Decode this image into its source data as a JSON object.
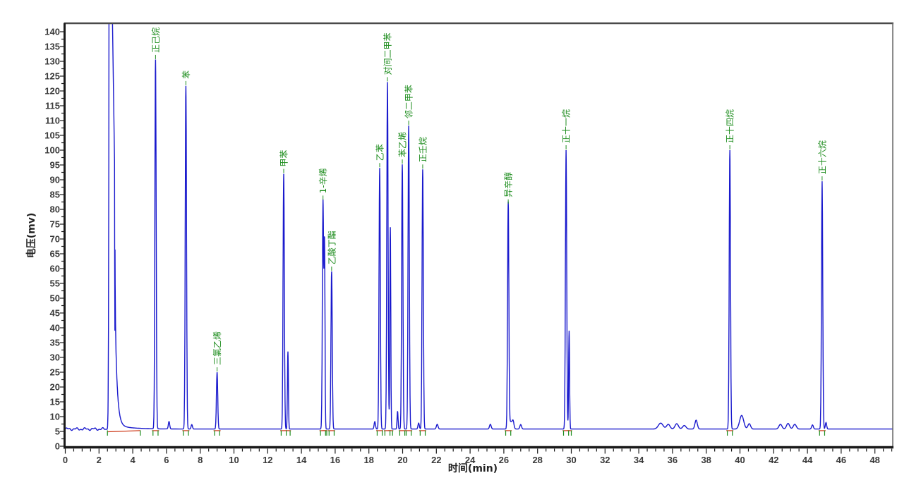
{
  "window": {
    "background": "#ffffff"
  },
  "chart_data": {
    "type": "line",
    "title": "",
    "xlabel": "时间(min)",
    "ylabel": "电压(mv)",
    "x_range": [
      0,
      49.05
    ],
    "y_range": [
      0,
      142.86
    ],
    "x_ticks": [
      0,
      2,
      4,
      6,
      8,
      10,
      12,
      14,
      16,
      18,
      20,
      22,
      24,
      26,
      28,
      30,
      32,
      34,
      36,
      38,
      40,
      42,
      44,
      46,
      48
    ],
    "x_minor_step": 0.5,
    "y_ticks": [
      0,
      5,
      10,
      15,
      20,
      25,
      30,
      35,
      40,
      45,
      50,
      55,
      60,
      65,
      70,
      75,
      80,
      85,
      90,
      95,
      100,
      105,
      110,
      115,
      120,
      125,
      130,
      135,
      140
    ],
    "y_minor_step": 2.5,
    "grid": false,
    "legend": false,
    "baseline_mv": 5.8,
    "colors": {
      "trace": "#1a1acd",
      "peak_labels": "#1c8c1c",
      "peak_marker_ticks": "#1c8c1c",
      "integration_marks": "#cc3311",
      "axis": "#1a1a1a",
      "tick_text": "#3a3a3a",
      "border_top": "#4a4a4a",
      "border_right": "#666666"
    },
    "solvent_peak": {
      "start_min": 2.57,
      "end_min": 2.93,
      "clipped_above_mv": 142.8,
      "tail_end_min": 4.45
    },
    "peaks": [
      {
        "name": "正己烷",
        "time_min": 5.35,
        "apex_mv": 130.5
      },
      {
        "name": "苯",
        "time_min": 7.15,
        "apex_mv": 121.7
      },
      {
        "name": "三氯乙烯",
        "time_min": 9.0,
        "apex_mv": 25.0
      },
      {
        "name": "甲苯",
        "time_min": 12.95,
        "apex_mv": 92.0
      },
      {
        "name": "1-辛烯",
        "time_min": 15.28,
        "apex_mv": 83.0
      },
      {
        "name": "乙酸丁酯",
        "time_min": 15.79,
        "apex_mv": 59.0
      },
      {
        "name": "乙苯",
        "time_min": 18.64,
        "apex_mv": 94.0
      },
      {
        "name": "对间二甲苯",
        "time_min": 19.1,
        "apex_mv": 123.0
      },
      {
        "name": "苯乙烯",
        "time_min": 19.98,
        "apex_mv": 95.2
      },
      {
        "name": "邻二甲苯",
        "time_min": 20.36,
        "apex_mv": 108.3
      },
      {
        "name": "正壬烷",
        "time_min": 21.19,
        "apex_mv": 93.5
      },
      {
        "name": "异辛醇",
        "time_min": 26.26,
        "apex_mv": 81.7
      },
      {
        "name": "正十一烷",
        "time_min": 29.69,
        "apex_mv": 100.0
      },
      {
        "name": "正十四烷",
        "time_min": 39.4,
        "apex_mv": 100.0
      },
      {
        "name": "正十六烷",
        "time_min": 44.87,
        "apex_mv": 89.5
      }
    ],
    "unlabeled_peaks": [
      {
        "time_min": 13.2,
        "apex_mv": 32.0
      },
      {
        "time_min": 15.37,
        "apex_mv": 66.0
      },
      {
        "time_min": 19.27,
        "apex_mv": 74.0
      },
      {
        "time_min": 29.87,
        "apex_mv": 39.0
      }
    ],
    "baseline_noise_bumps": [
      [
        6.15,
        2.5,
        0.04
      ],
      [
        7.5,
        1.5,
        0.04
      ],
      [
        18.35,
        2.5,
        0.04
      ],
      [
        19.7,
        6.0,
        0.03
      ],
      [
        20.95,
        2.0,
        0.04
      ],
      [
        22.05,
        1.6,
        0.05
      ],
      [
        25.2,
        1.6,
        0.05
      ],
      [
        26.4,
        2.5,
        0.1
      ],
      [
        26.55,
        2.2,
        0.05
      ],
      [
        27.0,
        1.5,
        0.05
      ],
      [
        35.3,
        2.0,
        0.14
      ],
      [
        35.75,
        1.6,
        0.1
      ],
      [
        36.25,
        1.8,
        0.1
      ],
      [
        36.7,
        1.2,
        0.1
      ],
      [
        37.4,
        3.0,
        0.07
      ],
      [
        40.1,
        4.6,
        0.12
      ],
      [
        40.55,
        1.8,
        0.08
      ],
      [
        42.4,
        1.6,
        0.09
      ],
      [
        42.85,
        1.9,
        0.09
      ],
      [
        43.25,
        1.6,
        0.09
      ],
      [
        44.3,
        1.4,
        0.05
      ],
      [
        45.1,
        2.2,
        0.04
      ]
    ]
  }
}
